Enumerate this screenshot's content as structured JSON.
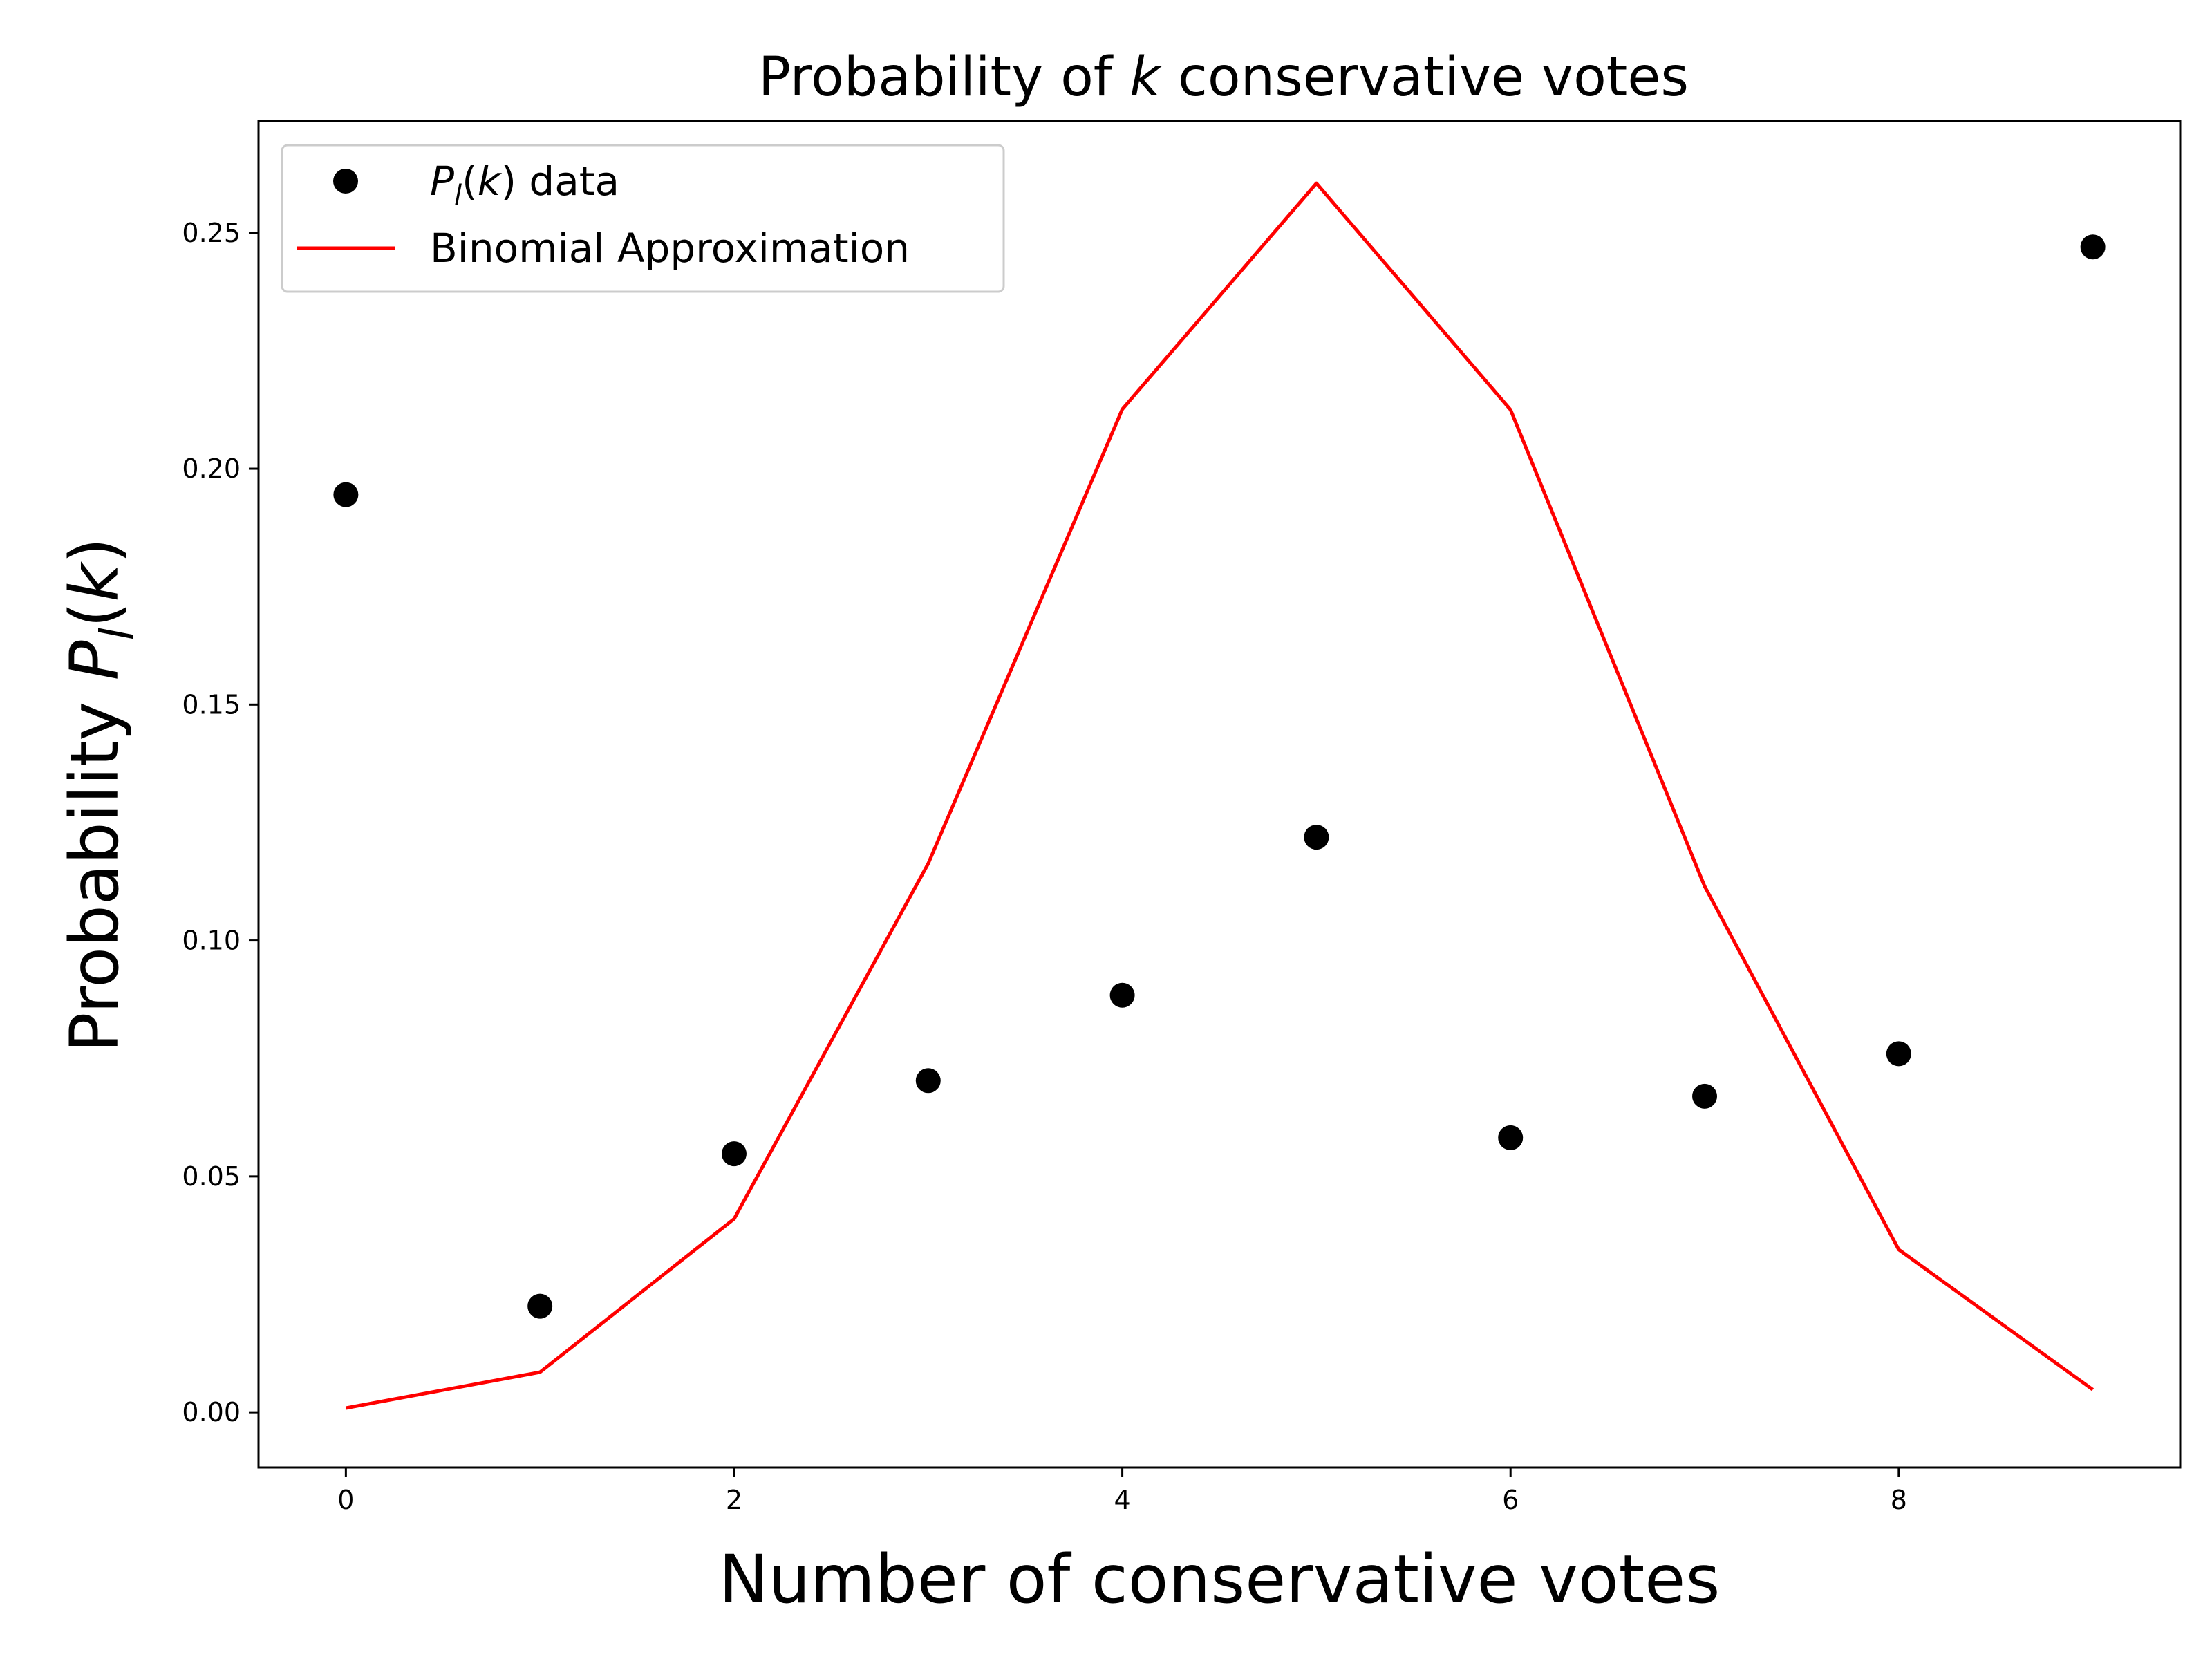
{
  "chart_data": {
    "type": "scatter",
    "title": {
      "prefix": "Probability of ",
      "var": "k",
      "suffix": " conservative votes"
    },
    "xlabel": "Number of conservative votes",
    "ylabel": {
      "prefix": "Probability ",
      "sym": "P",
      "sub": "l",
      "arg": "k"
    },
    "xlim": [
      -0.45,
      9.45
    ],
    "ylim": [
      -0.0117,
      0.2737
    ],
    "x_ticks": [
      0,
      2,
      4,
      6,
      8
    ],
    "x_tick_labels": [
      "0",
      "2",
      "4",
      "6",
      "8"
    ],
    "y_ticks": [
      0.0,
      0.05,
      0.1,
      0.15,
      0.2,
      0.25
    ],
    "y_tick_labels": [
      "0.00",
      "0.05",
      "0.10",
      "0.15",
      "0.20",
      "0.25"
    ],
    "grid": false,
    "legend_position": "upper-left",
    "series": [
      {
        "name": {
          "sym": "P",
          "sub": "l",
          "arg": "k",
          "suffix": " data"
        },
        "kind": "scatter",
        "color": "#000000",
        "x": [
          0,
          1,
          2,
          3,
          4,
          5,
          6,
          7,
          8,
          9
        ],
        "y": [
          0.1945,
          0.0225,
          0.0548,
          0.0703,
          0.0884,
          0.1219,
          0.0582,
          0.067,
          0.076,
          0.247
        ]
      },
      {
        "name": "Binomial Approximation",
        "kind": "line",
        "color": "#ff0000",
        "x": [
          0,
          1,
          2,
          3,
          4,
          5,
          6,
          7,
          8,
          9
        ],
        "y": [
          0.0009,
          0.0085,
          0.041,
          0.1163,
          0.2126,
          0.2605,
          0.2125,
          0.1115,
          0.0345,
          0.0048
        ]
      }
    ]
  }
}
